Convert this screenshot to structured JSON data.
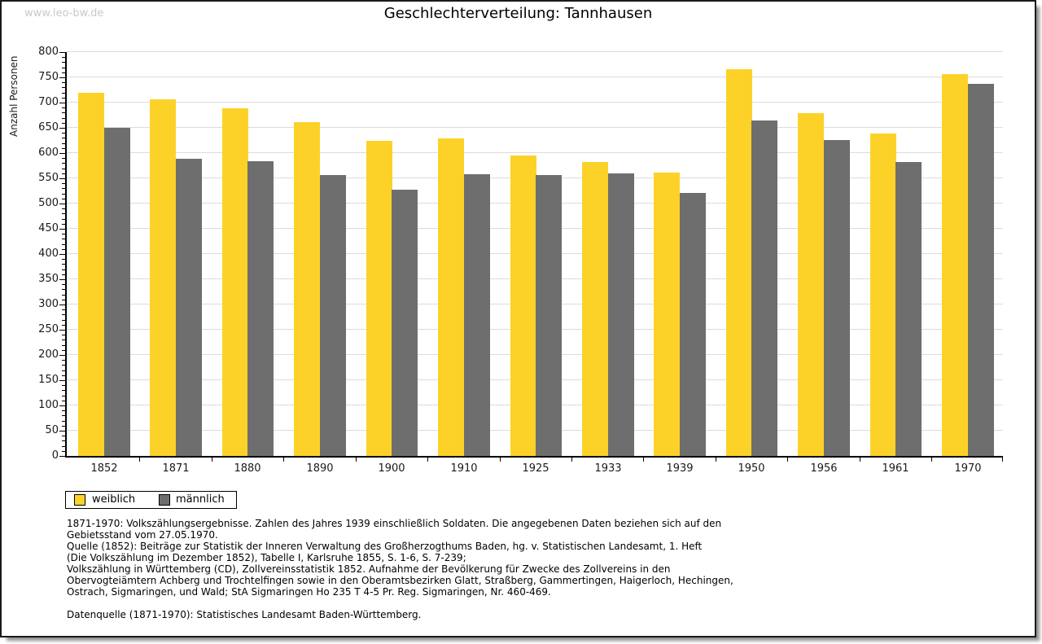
{
  "watermark": "www.leo-bw.de",
  "title": "Geschlechterverteilung: Tannhausen",
  "chart_data": {
    "type": "bar",
    "title": "Geschlechterverteilung: Tannhausen",
    "ylabel": "Anzahl Personen",
    "xlabel": "",
    "ylim": [
      0,
      800
    ],
    "ytick_step": 50,
    "yticks": [
      0,
      50,
      100,
      150,
      200,
      250,
      300,
      350,
      400,
      450,
      500,
      550,
      600,
      650,
      700,
      750,
      800
    ],
    "grid": true,
    "legend_position": "bottom-left",
    "categories": [
      "1852",
      "1871",
      "1880",
      "1890",
      "1900",
      "1910",
      "1925",
      "1933",
      "1939",
      "1950",
      "1956",
      "1961",
      "1970"
    ],
    "series": [
      {
        "name": "weiblich",
        "color": "#fcd228",
        "values": [
          720,
          707,
          688,
          661,
          624,
          629,
          595,
          582,
          562,
          766,
          679,
          639,
          756
        ]
      },
      {
        "name": "männlich",
        "color": "#6e6e6e",
        "values": [
          650,
          588,
          584,
          557,
          528,
          558,
          557,
          559,
          521,
          664,
          626,
          583,
          737
        ]
      }
    ]
  },
  "footnotes": {
    "lines": [
      "1871-1970: Volkszählungsergebnisse. Zahlen des Jahres 1939 einschließlich Soldaten. Die angegebenen Daten beziehen sich auf den",
      "Gebietsstand vom 27.05.1970.",
      "Quelle (1852): Beiträge zur Statistik der Inneren Verwaltung des Großherzogthums Baden, hg. v. Statistischen Landesamt, 1. Heft",
      "(Die Volkszählung im Dezember 1852), Tabelle I, Karlsruhe 1855, S. 1-6, S. 7-239;",
      "Volkszählung in Württemberg (CD), Zollvereinsstatistik 1852. Aufnahme der Bevölkerung für Zwecke des Zollvereins in den",
      "Obervogteiämtern Achberg und Trochtelfingen sowie in den Oberamtsbezirken Glatt, Straßberg, Gammertingen, Haigerloch, Hechingen,",
      "Ostrach, Sigmaringen, und Wald; StA Sigmaringen Ho 235 T 4-5 Pr. Reg. Sigmaringen, Nr. 460-469."
    ],
    "datasource": "Datenquelle (1871-1970): Statistisches Landesamt Baden-Württemberg."
  }
}
